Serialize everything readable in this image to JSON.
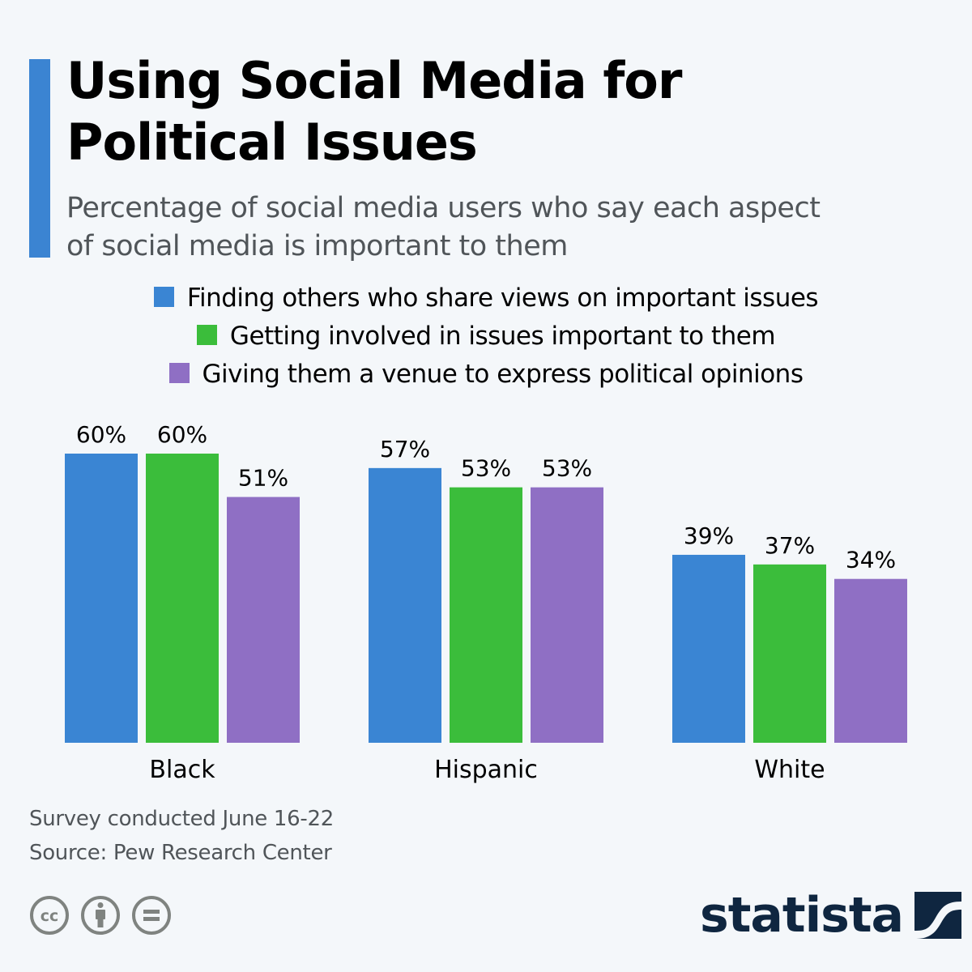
{
  "header": {
    "title_line1": "Using Social Media for",
    "title_line2": "Political Issues",
    "subtitle_line1": "Percentage of social media users who say each aspect",
    "subtitle_line2": "of social media is important to them"
  },
  "colors": {
    "accent": "#3b84d2",
    "series": [
      "#3a85d3",
      "#3bbd3b",
      "#8f6fc4"
    ],
    "logo": "#0f2640",
    "footer_text": "#505559",
    "icons": "#7f8380"
  },
  "chart_data": {
    "type": "bar",
    "title": "Using Social Media for Political Issues",
    "subtitle": "Percentage of social media users who say each aspect of social media is important to them",
    "categories": [
      "Black",
      "Hispanic",
      "White"
    ],
    "series": [
      {
        "name": "Finding others who share views on important issues",
        "values": [
          60,
          57,
          39
        ]
      },
      {
        "name": "Getting involved in issues important to them",
        "values": [
          60,
          53,
          37
        ]
      },
      {
        "name": "Giving them a venue to express political opinions",
        "values": [
          51,
          53,
          34
        ]
      }
    ],
    "value_suffix": "%",
    "xlabel": "",
    "ylabel": "",
    "ylim": [
      0,
      60
    ],
    "grid": false,
    "legend": "top-center"
  },
  "footer": {
    "survey_note": "Survey conducted June 16-22",
    "source": "Source: Pew Research Center"
  },
  "icons": [
    "cc-icon",
    "attribution-icon",
    "no-derivatives-icon"
  ],
  "logo": {
    "text": "statista"
  }
}
